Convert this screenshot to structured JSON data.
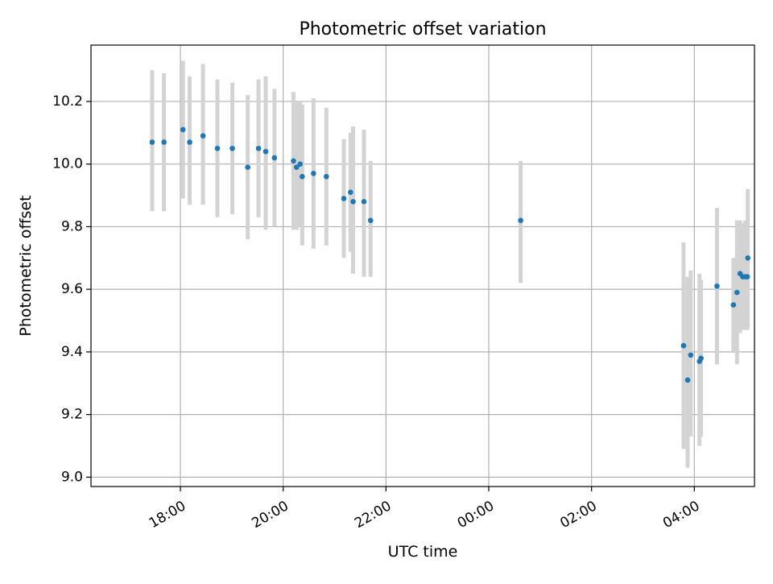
{
  "colors": {
    "point": "#1f77b4",
    "errorbar": "#d3d3d3",
    "grid": "#b0b0b0",
    "frame": "#000000"
  },
  "chart_data": {
    "type": "scatter",
    "title": "Photometric offset variation",
    "xlabel": "UTC time",
    "ylabel": "Photometric offset",
    "x_unit": "hours since 17:00 UTC (wraps past midnight)",
    "xlim": [
      -0.74,
      12.17
    ],
    "ylim": [
      8.97,
      10.38
    ],
    "grid": true,
    "x_ticks": [
      {
        "value": 1,
        "label": "18:00"
      },
      {
        "value": 3,
        "label": "20:00"
      },
      {
        "value": 5,
        "label": "22:00"
      },
      {
        "value": 7,
        "label": "00:00"
      },
      {
        "value": 9,
        "label": "02:00"
      },
      {
        "value": 11,
        "label": "04:00"
      }
    ],
    "y_ticks": [
      {
        "value": 9.0,
        "label": "9.0"
      },
      {
        "value": 9.2,
        "label": "9.2"
      },
      {
        "value": 9.4,
        "label": "9.4"
      },
      {
        "value": 9.6,
        "label": "9.6"
      },
      {
        "value": 9.8,
        "label": "9.8"
      },
      {
        "value": 10.0,
        "label": "10.0"
      },
      {
        "value": 10.2,
        "label": "10.2"
      }
    ],
    "points": [
      {
        "x": 0.45,
        "y": 10.07,
        "lo": 9.85,
        "hi": 10.3
      },
      {
        "x": 0.68,
        "y": 10.07,
        "lo": 9.85,
        "hi": 10.29
      },
      {
        "x": 1.05,
        "y": 10.11,
        "lo": 9.89,
        "hi": 10.33
      },
      {
        "x": 1.18,
        "y": 10.07,
        "lo": 9.87,
        "hi": 10.28
      },
      {
        "x": 1.44,
        "y": 10.09,
        "lo": 9.87,
        "hi": 10.32
      },
      {
        "x": 1.72,
        "y": 10.05,
        "lo": 9.83,
        "hi": 10.27
      },
      {
        "x": 2.01,
        "y": 10.05,
        "lo": 9.84,
        "hi": 10.26
      },
      {
        "x": 2.31,
        "y": 9.99,
        "lo": 9.76,
        "hi": 10.22
      },
      {
        "x": 2.52,
        "y": 10.05,
        "lo": 9.83,
        "hi": 10.27
      },
      {
        "x": 2.66,
        "y": 10.04,
        "lo": 9.79,
        "hi": 10.28
      },
      {
        "x": 2.83,
        "y": 10.02,
        "lo": 9.8,
        "hi": 10.24
      },
      {
        "x": 3.2,
        "y": 10.01,
        "lo": 9.79,
        "hi": 10.23
      },
      {
        "x": 3.26,
        "y": 9.99,
        "lo": 9.79,
        "hi": 10.2
      },
      {
        "x": 3.33,
        "y": 10.0,
        "lo": 9.8,
        "hi": 10.2
      },
      {
        "x": 3.37,
        "y": 9.96,
        "lo": 9.74,
        "hi": 10.19
      },
      {
        "x": 3.59,
        "y": 9.97,
        "lo": 9.73,
        "hi": 10.21
      },
      {
        "x": 3.84,
        "y": 9.96,
        "lo": 9.74,
        "hi": 10.18
      },
      {
        "x": 4.18,
        "y": 9.89,
        "lo": 9.7,
        "hi": 10.08
      },
      {
        "x": 4.31,
        "y": 9.91,
        "lo": 9.72,
        "hi": 10.1
      },
      {
        "x": 4.36,
        "y": 9.88,
        "lo": 9.65,
        "hi": 10.12
      },
      {
        "x": 4.57,
        "y": 9.88,
        "lo": 9.64,
        "hi": 10.11
      },
      {
        "x": 4.7,
        "y": 9.82,
        "lo": 9.64,
        "hi": 10.01
      },
      {
        "x": 7.62,
        "y": 9.82,
        "lo": 9.62,
        "hi": 10.01
      },
      {
        "x": 10.79,
        "y": 9.42,
        "lo": 9.09,
        "hi": 9.75
      },
      {
        "x": 10.87,
        "y": 9.31,
        "lo": 9.03,
        "hi": 9.64
      },
      {
        "x": 10.93,
        "y": 9.39,
        "lo": 9.13,
        "hi": 9.66
      },
      {
        "x": 11.1,
        "y": 9.37,
        "lo": 9.1,
        "hi": 9.65
      },
      {
        "x": 11.13,
        "y": 9.38,
        "lo": 9.13,
        "hi": 9.63
      },
      {
        "x": 11.44,
        "y": 9.61,
        "lo": 9.36,
        "hi": 9.86
      },
      {
        "x": 11.76,
        "y": 9.55,
        "lo": 9.4,
        "hi": 9.7
      },
      {
        "x": 11.83,
        "y": 9.59,
        "lo": 9.36,
        "hi": 9.82
      },
      {
        "x": 11.89,
        "y": 9.65,
        "lo": 9.46,
        "hi": 9.82
      },
      {
        "x": 11.94,
        "y": 9.64,
        "lo": 9.47,
        "hi": 9.81
      },
      {
        "x": 11.99,
        "y": 9.64,
        "lo": 9.47,
        "hi": 9.82
      },
      {
        "x": 12.03,
        "y": 9.64,
        "lo": 9.47,
        "hi": 9.82
      },
      {
        "x": 12.04,
        "y": 9.7,
        "lo": 9.48,
        "hi": 9.92
      }
    ]
  }
}
